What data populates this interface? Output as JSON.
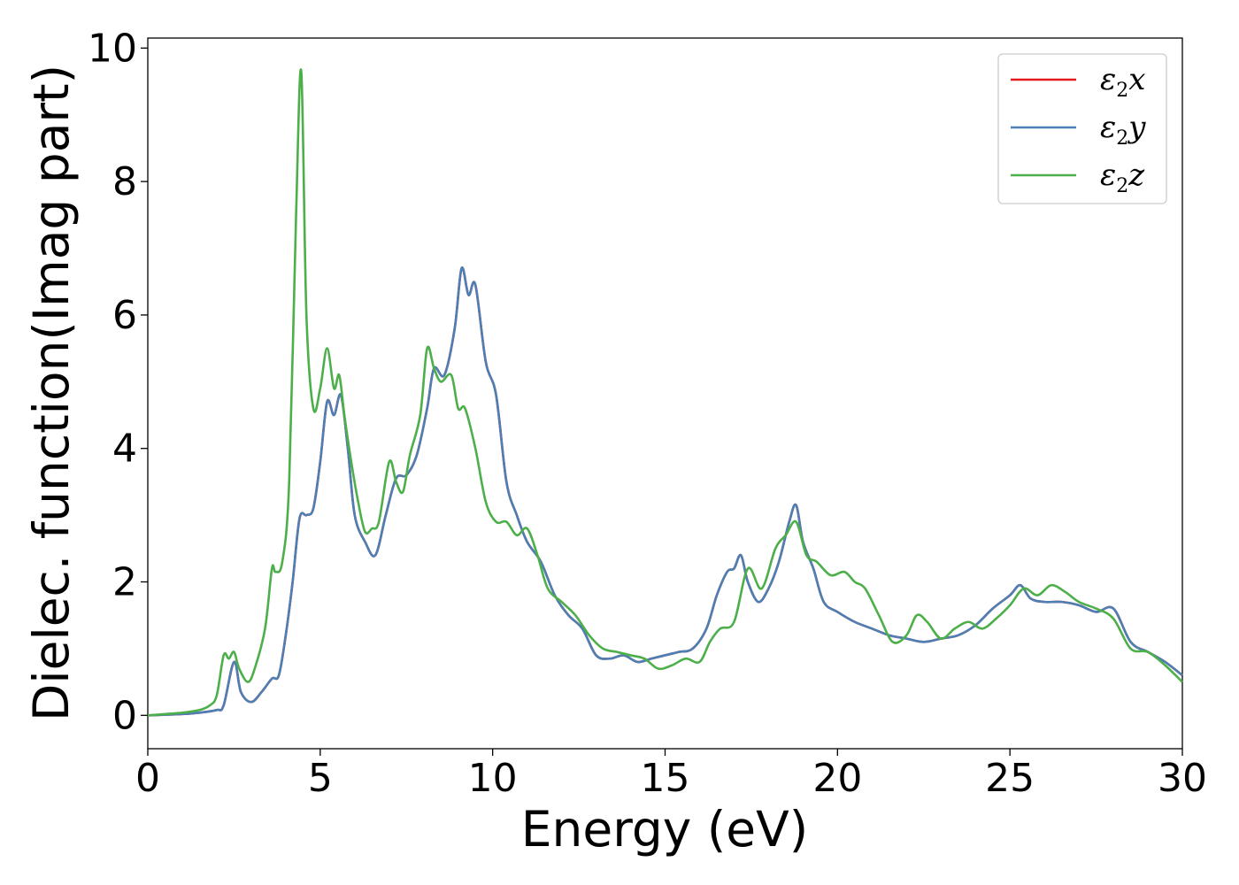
{
  "chart_data": {
    "type": "line",
    "xlabel": "Energy (eV)",
    "ylabel": "Dielec. function(Imag part)",
    "xlim": [
      0,
      30
    ],
    "ylim": [
      -0.5,
      10.15
    ],
    "xticks": [
      0,
      5,
      10,
      15,
      20,
      25,
      30
    ],
    "yticks": [
      0,
      2,
      4,
      6,
      8,
      10
    ],
    "grid": false,
    "legend_position": "top-right",
    "series": [
      {
        "name": "ε2x",
        "base": "ε",
        "sub": "2",
        "var": "x",
        "color": "#e41a1c",
        "x": [
          0,
          1.0,
          1.5,
          2.0,
          2.2,
          2.5,
          2.7,
          3.0,
          3.3,
          3.6,
          3.8,
          4.0,
          4.2,
          4.4,
          4.6,
          4.8,
          5.0,
          5.2,
          5.4,
          5.6,
          5.8,
          6.0,
          6.3,
          6.6,
          6.9,
          7.2,
          7.5,
          7.8,
          8.1,
          8.3,
          8.6,
          8.9,
          9.1,
          9.3,
          9.5,
          9.8,
          10.1,
          10.4,
          10.7,
          11.0,
          11.4,
          11.8,
          12.2,
          12.6,
          13.0,
          13.4,
          13.8,
          14.2,
          14.6,
          15.0,
          15.4,
          15.8,
          16.2,
          16.5,
          16.8,
          17.0,
          17.2,
          17.4,
          17.7,
          18.0,
          18.3,
          18.6,
          18.8,
          19.0,
          19.3,
          19.6,
          20.0,
          20.5,
          21.0,
          21.5,
          22.0,
          22.5,
          23.0,
          23.5,
          24.0,
          24.5,
          25.0,
          25.3,
          25.6,
          26.0,
          26.5,
          27.0,
          27.5,
          28.0,
          28.5,
          29.0,
          29.5,
          30.0
        ],
        "y": [
          0,
          0.02,
          0.04,
          0.08,
          0.15,
          0.8,
          0.35,
          0.2,
          0.35,
          0.55,
          0.6,
          1.2,
          2.0,
          2.95,
          3.0,
          3.1,
          3.8,
          4.7,
          4.5,
          4.8,
          4.0,
          3.0,
          2.6,
          2.4,
          3.0,
          3.55,
          3.6,
          3.9,
          4.6,
          5.2,
          5.1,
          5.8,
          6.7,
          6.3,
          6.45,
          5.3,
          4.8,
          3.5,
          3.0,
          2.6,
          2.3,
          1.8,
          1.5,
          1.3,
          0.9,
          0.85,
          0.9,
          0.8,
          0.85,
          0.9,
          0.95,
          1.0,
          1.3,
          1.8,
          2.15,
          2.2,
          2.4,
          2.0,
          1.7,
          1.9,
          2.3,
          2.9,
          3.15,
          2.6,
          2.2,
          1.7,
          1.55,
          1.4,
          1.3,
          1.2,
          1.15,
          1.1,
          1.15,
          1.2,
          1.35,
          1.6,
          1.8,
          1.95,
          1.75,
          1.7,
          1.7,
          1.65,
          1.55,
          1.6,
          1.1,
          0.95,
          0.8,
          0.6
        ]
      },
      {
        "name": "ε2y",
        "base": "ε",
        "sub": "2",
        "var": "y",
        "color": "#4c7fb4",
        "x": [
          0,
          1.0,
          1.5,
          2.0,
          2.2,
          2.5,
          2.7,
          3.0,
          3.3,
          3.6,
          3.8,
          4.0,
          4.2,
          4.4,
          4.6,
          4.8,
          5.0,
          5.2,
          5.4,
          5.6,
          5.8,
          6.0,
          6.3,
          6.6,
          6.9,
          7.2,
          7.5,
          7.8,
          8.1,
          8.3,
          8.6,
          8.9,
          9.1,
          9.3,
          9.5,
          9.8,
          10.1,
          10.4,
          10.7,
          11.0,
          11.4,
          11.8,
          12.2,
          12.6,
          13.0,
          13.4,
          13.8,
          14.2,
          14.6,
          15.0,
          15.4,
          15.8,
          16.2,
          16.5,
          16.8,
          17.0,
          17.2,
          17.4,
          17.7,
          18.0,
          18.3,
          18.6,
          18.8,
          19.0,
          19.3,
          19.6,
          20.0,
          20.5,
          21.0,
          21.5,
          22.0,
          22.5,
          23.0,
          23.5,
          24.0,
          24.5,
          25.0,
          25.3,
          25.6,
          26.0,
          26.5,
          27.0,
          27.5,
          28.0,
          28.5,
          29.0,
          29.5,
          30.0
        ],
        "y": [
          0,
          0.02,
          0.04,
          0.08,
          0.15,
          0.8,
          0.35,
          0.2,
          0.35,
          0.55,
          0.6,
          1.2,
          2.0,
          2.95,
          3.0,
          3.1,
          3.8,
          4.7,
          4.5,
          4.8,
          4.0,
          3.0,
          2.6,
          2.4,
          3.0,
          3.55,
          3.6,
          3.9,
          4.6,
          5.2,
          5.1,
          5.8,
          6.7,
          6.3,
          6.45,
          5.3,
          4.8,
          3.5,
          3.0,
          2.6,
          2.3,
          1.8,
          1.5,
          1.3,
          0.9,
          0.85,
          0.9,
          0.8,
          0.85,
          0.9,
          0.95,
          1.0,
          1.3,
          1.8,
          2.15,
          2.2,
          2.4,
          2.0,
          1.7,
          1.9,
          2.3,
          2.9,
          3.15,
          2.6,
          2.2,
          1.7,
          1.55,
          1.4,
          1.3,
          1.2,
          1.15,
          1.1,
          1.15,
          1.2,
          1.35,
          1.6,
          1.8,
          1.95,
          1.75,
          1.7,
          1.7,
          1.65,
          1.55,
          1.6,
          1.1,
          0.95,
          0.8,
          0.6
        ]
      },
      {
        "name": "ε2z",
        "base": "ε",
        "sub": "2",
        "var": "z",
        "color": "#4daf4a",
        "x": [
          0,
          1.0,
          1.5,
          1.8,
          2.0,
          2.2,
          2.35,
          2.5,
          2.65,
          2.9,
          3.1,
          3.4,
          3.6,
          3.7,
          3.9,
          4.1,
          4.3,
          4.45,
          4.6,
          4.8,
          5.0,
          5.2,
          5.4,
          5.55,
          5.7,
          5.9,
          6.1,
          6.3,
          6.5,
          6.7,
          7.0,
          7.2,
          7.4,
          7.6,
          7.9,
          8.1,
          8.3,
          8.5,
          8.8,
          9.0,
          9.2,
          9.5,
          9.8,
          10.1,
          10.4,
          10.7,
          11.0,
          11.3,
          11.6,
          12.0,
          12.4,
          12.8,
          13.2,
          13.6,
          14.0,
          14.4,
          14.8,
          15.2,
          15.6,
          16.0,
          16.3,
          16.6,
          17.0,
          17.4,
          17.8,
          18.2,
          18.5,
          18.8,
          19.1,
          19.4,
          19.8,
          20.2,
          20.5,
          20.8,
          21.2,
          21.6,
          22.0,
          22.3,
          22.6,
          23.0,
          23.4,
          23.8,
          24.2,
          24.6,
          25.0,
          25.4,
          25.8,
          26.2,
          26.6,
          27.0,
          27.5,
          28.0,
          28.5,
          29.0,
          29.5,
          30.0
        ],
        "y": [
          0,
          0.04,
          0.08,
          0.15,
          0.3,
          0.9,
          0.85,
          0.95,
          0.7,
          0.5,
          0.7,
          1.3,
          2.2,
          2.15,
          2.3,
          3.5,
          7.5,
          9.65,
          6.0,
          4.6,
          4.9,
          5.5,
          4.9,
          5.1,
          4.5,
          3.8,
          3.2,
          2.75,
          2.8,
          2.9,
          3.8,
          3.5,
          3.35,
          3.9,
          4.5,
          5.5,
          5.2,
          5.0,
          5.1,
          4.6,
          4.6,
          4.0,
          3.2,
          2.9,
          2.9,
          2.7,
          2.8,
          2.4,
          1.9,
          1.7,
          1.5,
          1.2,
          1.0,
          0.95,
          0.9,
          0.85,
          0.7,
          0.75,
          0.85,
          0.8,
          1.1,
          1.3,
          1.4,
          2.2,
          1.9,
          2.5,
          2.7,
          2.9,
          2.4,
          2.3,
          2.1,
          2.15,
          2.0,
          1.9,
          1.5,
          1.1,
          1.2,
          1.5,
          1.4,
          1.15,
          1.3,
          1.4,
          1.3,
          1.45,
          1.65,
          1.9,
          1.8,
          1.95,
          1.85,
          1.7,
          1.6,
          1.45,
          1.0,
          0.95,
          0.75,
          0.5
        ]
      }
    ]
  }
}
